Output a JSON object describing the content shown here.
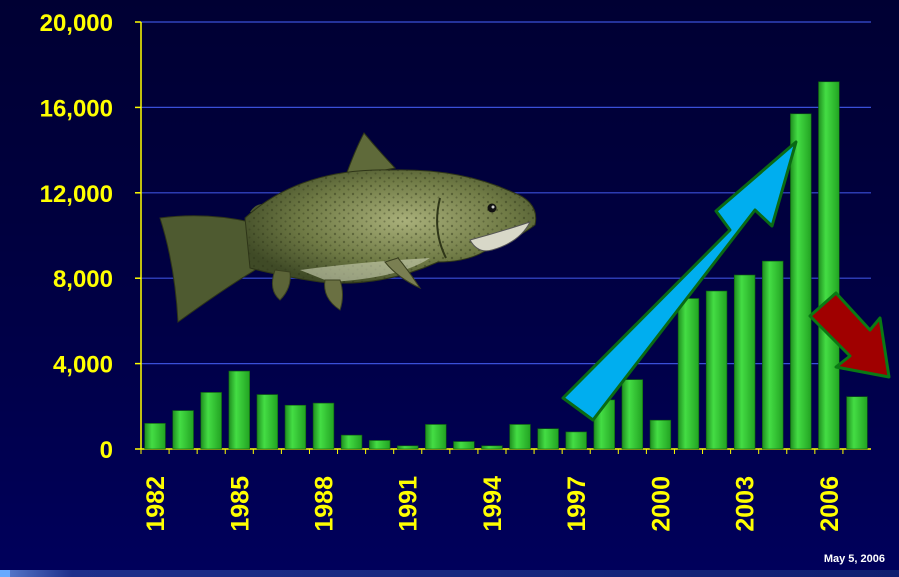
{
  "chart_data": {
    "type": "bar",
    "categories": [
      "1982",
      "1983",
      "1984",
      "1985",
      "1986",
      "1987",
      "1988",
      "1989",
      "1990",
      "1991",
      "1992",
      "1993",
      "1994",
      "1995",
      "1996",
      "1997",
      "1998",
      "1999",
      "2000",
      "2001",
      "2002",
      "2003",
      "2004",
      "2005",
      "2006",
      "2007"
    ],
    "values": [
      1200,
      1800,
      2650,
      3650,
      2550,
      2050,
      2150,
      650,
      400,
      150,
      1150,
      350,
      150,
      1150,
      950,
      800,
      2300,
      3250,
      1350,
      7050,
      7400,
      8150,
      8800,
      15700,
      17200,
      2450
    ],
    "x_tick_labels": [
      "1982",
      "1985",
      "1988",
      "1991",
      "1994",
      "1997",
      "2000",
      "2003",
      "2006"
    ],
    "y_tick_labels": [
      "0",
      "4,000",
      "8,000",
      "12,000",
      "16,000",
      "20,000"
    ],
    "ylim": [
      0,
      20000
    ],
    "grid": true,
    "title": "",
    "xlabel": "",
    "ylabel": "",
    "annotations": [
      "up-arrow (increase trend)",
      "down-arrow (decrease)"
    ]
  },
  "footer": {
    "date": "May 5, 2006"
  },
  "colors": {
    "bar": "#33cc33",
    "grid": "#3a4fd8",
    "tick_text": "#ffff00",
    "up_arrow": "#00aeef",
    "down_arrow": "#aa0000",
    "arrow_outline": "#008000"
  },
  "images": {
    "fish": "salmon-image"
  }
}
